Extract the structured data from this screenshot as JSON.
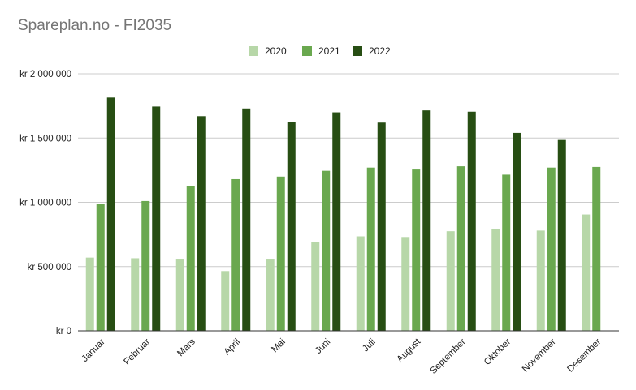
{
  "chart_data": {
    "type": "bar",
    "title": "Spareplan.no - FI2035",
    "categories": [
      "Januar",
      "Februar",
      "Mars",
      "April",
      "Mai",
      "Juni",
      "Juli",
      "August",
      "September",
      "Oktober",
      "November",
      "Desember"
    ],
    "series": [
      {
        "name": "2020",
        "color": "#b7d7a8",
        "values": [
          570000,
          565000,
          555000,
          465000,
          555000,
          690000,
          735000,
          730000,
          775000,
          795000,
          780000,
          905000
        ]
      },
      {
        "name": "2021",
        "color": "#6aa84f",
        "values": [
          985000,
          1010000,
          1125000,
          1180000,
          1200000,
          1245000,
          1270000,
          1255000,
          1280000,
          1215000,
          1270000,
          1275000
        ]
      },
      {
        "name": "2022",
        "color": "#274e13",
        "values": [
          1815000,
          1745000,
          1670000,
          1730000,
          1625000,
          1700000,
          1620000,
          1715000,
          1705000,
          1540000,
          1485000,
          null
        ]
      }
    ],
    "yticks": [
      {
        "value": 0,
        "label": "kr    0"
      },
      {
        "value": 500000,
        "label": "kr  500 000"
      },
      {
        "value": 1000000,
        "label": "kr 1 000 000"
      },
      {
        "value": 1500000,
        "label": "kr 1 500 000"
      },
      {
        "value": 2000000,
        "label": "kr 2 000 000"
      }
    ],
    "ylim": [
      0,
      2000000
    ],
    "grid": true,
    "legend": "top-center",
    "xlabel": "",
    "ylabel": ""
  }
}
